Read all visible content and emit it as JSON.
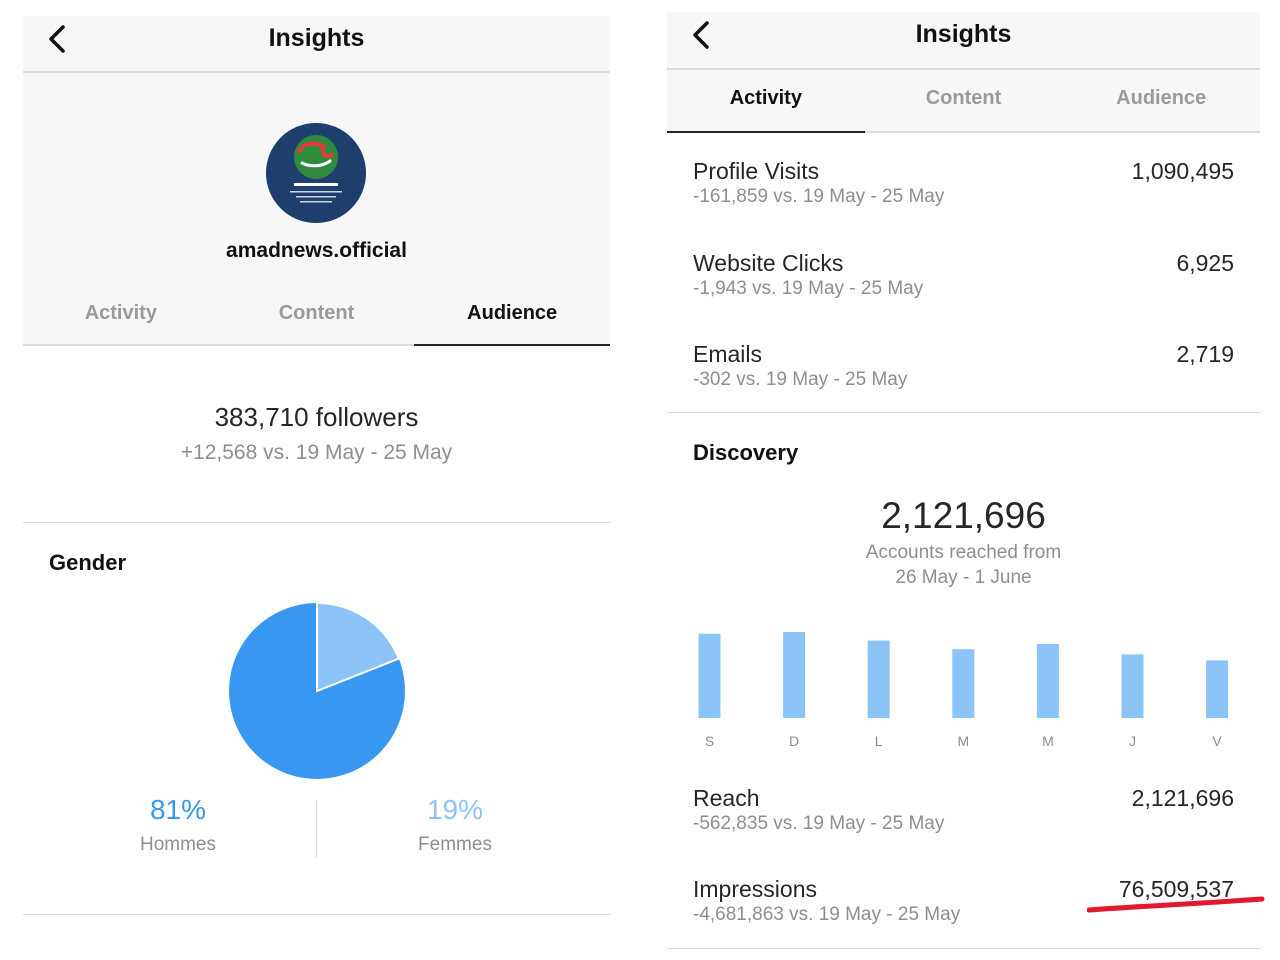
{
  "left": {
    "header": {
      "title": "Insights",
      "back_icon": "chevron-left-icon"
    },
    "profile": {
      "username": "amadnews.official",
      "avatar_icon": "amadnews-logo-icon"
    },
    "tabs": [
      {
        "label": "Activity",
        "active": false
      },
      {
        "label": "Content",
        "active": false
      },
      {
        "label": "Audience",
        "active": true
      }
    ],
    "followers": {
      "count_text": "383,710 followers",
      "delta_text": "+12,568 vs. 19 May - 25 May"
    },
    "gender": {
      "title": "Gender",
      "men": {
        "pct": "81%",
        "label": "Hommes",
        "color": "#3897f0"
      },
      "women": {
        "pct": "19%",
        "label": "Femmes",
        "color": "#8cc4f7"
      }
    }
  },
  "right": {
    "header": {
      "title": "Insights",
      "back_icon": "chevron-left-icon"
    },
    "tabs": [
      {
        "label": "Activity",
        "active": true
      },
      {
        "label": "Content",
        "active": false
      },
      {
        "label": "Audience",
        "active": false
      }
    ],
    "metrics": [
      {
        "label": "Profile Visits",
        "value": "1,090,495",
        "delta": "-161,859 vs. 19 May - 25 May"
      },
      {
        "label": "Website Clicks",
        "value": "6,925",
        "delta": "-1,943 vs. 19 May - 25 May"
      },
      {
        "label": "Emails",
        "value": "2,719",
        "delta": "-302 vs. 19 May - 25 May"
      }
    ],
    "discovery": {
      "title": "Discovery",
      "accounts_reached": "2,121,696",
      "caption_line1": "Accounts reached from",
      "caption_line2": "26 May - 1 June"
    },
    "reach": {
      "label": "Reach",
      "value": "2,121,696",
      "delta": "-562,835 vs. 19 May - 25 May"
    },
    "impressions": {
      "label": "Impressions",
      "value": "76,509,537",
      "delta": "-4,681,863 vs. 19 May - 25 May"
    },
    "annotation_color": "#e0192f"
  },
  "chart_data": {
    "type": "bar",
    "categories": [
      "S",
      "D",
      "L",
      "M",
      "M",
      "J",
      "V"
    ],
    "values": [
      0.98,
      1.0,
      0.9,
      0.8,
      0.86,
      0.74,
      0.67
    ],
    "ylim": [
      0,
      1
    ],
    "grid": false,
    "color": "#8cc4f7"
  }
}
